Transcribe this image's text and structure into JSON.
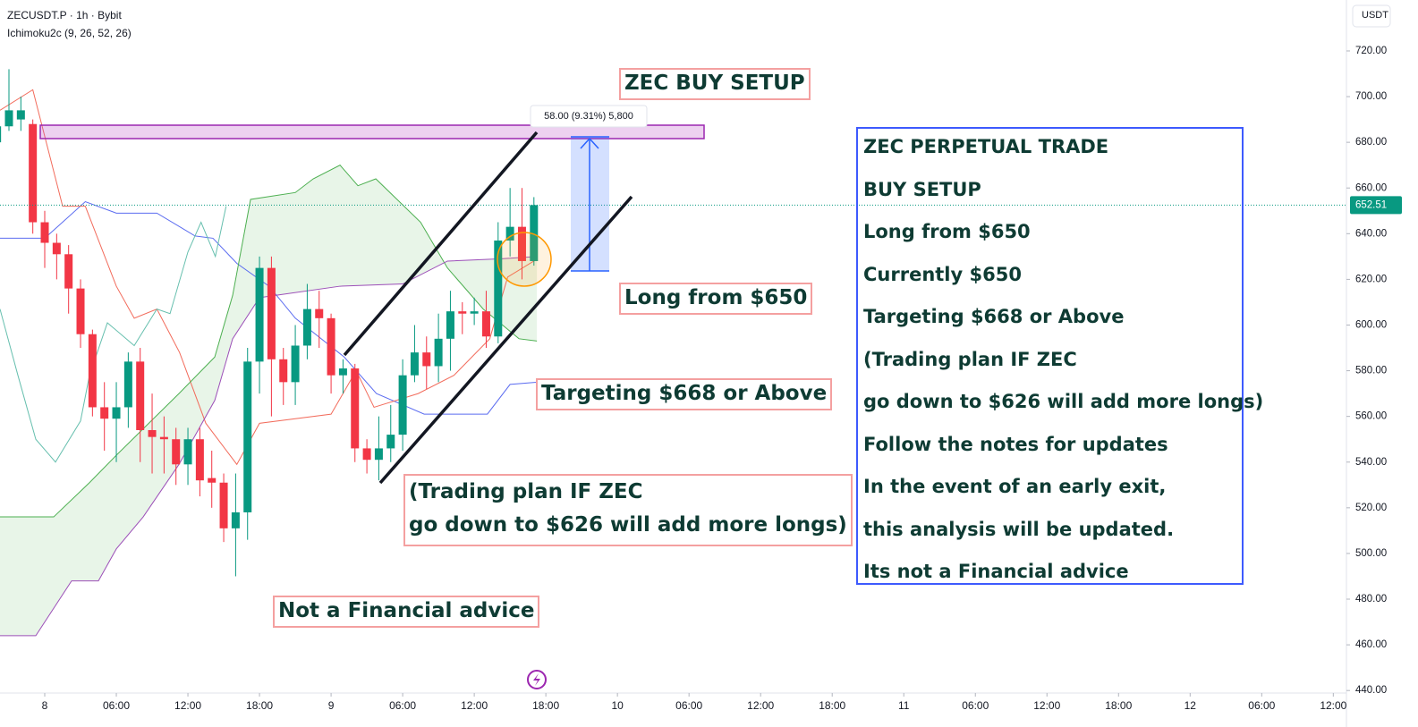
{
  "header": {
    "symbol": "ZECUSDT.P · 1h · Bybit",
    "indicator": "Ichimoku2c (9, 26, 52, 26)",
    "currency": "USDT"
  },
  "chart_data": {
    "type": "candlestick",
    "x": [
      -4,
      -3,
      -2,
      -1,
      0,
      1,
      2,
      3,
      4,
      5,
      6,
      7,
      8,
      9,
      10,
      11,
      12,
      13,
      14,
      15,
      16,
      17,
      18,
      19,
      20,
      21,
      22,
      23,
      24,
      25,
      26,
      27,
      28,
      29,
      30,
      31,
      32,
      33,
      34,
      35,
      36,
      37,
      38,
      39,
      40,
      41
    ],
    "open": [
      680,
      687,
      690,
      688,
      645,
      636,
      631,
      616,
      596,
      564,
      559,
      564,
      584,
      554,
      551,
      550,
      539,
      550,
      533,
      531,
      511,
      518,
      584,
      625,
      585,
      575,
      591,
      607,
      603,
      578,
      581,
      546,
      541,
      546,
      552,
      578,
      588,
      582,
      594,
      606,
      605,
      606,
      595,
      637,
      643,
      628
    ],
    "high": [
      690,
      712,
      700,
      690,
      650,
      640,
      635,
      620,
      598,
      575,
      575,
      588,
      590,
      570,
      560,
      555,
      555,
      555,
      545,
      535,
      535,
      590,
      630,
      630,
      590,
      600,
      618,
      615,
      605,
      585,
      583,
      550,
      560,
      565,
      585,
      600,
      595,
      605,
      615,
      610,
      612,
      615,
      645,
      660,
      660,
      656
    ],
    "low": [
      675,
      685,
      685,
      640,
      625,
      620,
      605,
      590,
      560,
      545,
      540,
      555,
      540,
      535,
      535,
      530,
      530,
      525,
      520,
      505,
      490,
      506,
      570,
      560,
      565,
      565,
      585,
      590,
      570,
      570,
      540,
      535,
      532,
      540,
      545,
      575,
      572,
      575,
      580,
      596,
      600,
      590,
      592,
      630,
      620,
      626
    ],
    "close": [
      687,
      694,
      694,
      645,
      636,
      631,
      616,
      596,
      564,
      559,
      564,
      584,
      554,
      551,
      550,
      539,
      550,
      532,
      531,
      511,
      518,
      584,
      625,
      585,
      575,
      591,
      607,
      603,
      578,
      581,
      546,
      541,
      546,
      552,
      578,
      588,
      582,
      594,
      606,
      605,
      606,
      595,
      637,
      643,
      628,
      652.51
    ],
    "up_color": "#089981",
    "down_color": "#f23645",
    "lines": [
      {
        "color": "#5b6cf0",
        "x": [
          -3.75,
          0,
          3.4,
          6,
          9.4,
          12.6,
          14.1,
          16.1,
          18.8,
          21,
          25.1,
          27.8,
          31.8,
          37.1,
          39,
          41.3
        ],
        "values": [
          638,
          638,
          654,
          649,
          649,
          639,
          638,
          627,
          617,
          603,
          586,
          570,
          561,
          561,
          574,
          575
        ]
      },
      {
        "color": "#f26b5b",
        "x": [
          -3.75,
          -1,
          1.5,
          3.4,
          6,
          7.5,
          9.4,
          11.3,
          13.5,
          16.1,
          18,
          24,
          26.1,
          27.6,
          31.3,
          34.3,
          37.3,
          38.8,
          41.3
        ],
        "values": [
          694,
          703,
          652,
          652,
          617,
          603,
          607,
          588,
          557,
          539,
          557,
          561,
          580,
          564,
          570,
          578,
          594,
          621,
          629
        ]
      },
      {
        "color": "#4caf50",
        "x": [
          -3.75,
          0.75,
          3.75,
          6,
          11.25,
          14.25,
          15.75,
          17.25,
          21,
          22.5,
          24.75,
          26.25,
          27.75,
          31.5,
          33.75,
          36.75,
          39.75,
          41.25
        ],
        "values": [
          516,
          516,
          531,
          543,
          570,
          586,
          613,
          655,
          658,
          664,
          670,
          661,
          664,
          645,
          625,
          607,
          594,
          593
        ]
      },
      {
        "color": "#9c4fb8",
        "x": [
          -3.75,
          -0.75,
          2.25,
          4.5,
          6,
          8.25,
          11.25,
          14.25,
          15.75,
          18,
          24.75,
          30,
          33.75,
          38.25,
          41.25
        ],
        "values": [
          464,
          464,
          488,
          488,
          502,
          516,
          539,
          567,
          594,
          612,
          617,
          618,
          628,
          629,
          630
        ]
      },
      {
        "color": "#66bfae",
        "x": [
          -3.75,
          -2.25,
          -0.75,
          0.9,
          3,
          3.75,
          5.25,
          7.5,
          9.4,
          10.5,
          12,
          13.1,
          14.3,
          15.2
        ],
        "values": [
          607,
          578,
          550,
          540,
          558,
          578,
          601,
          591,
          607,
          605,
          632,
          645,
          630,
          652
        ]
      }
    ],
    "cloud_color": "rgba(76,175,80,0.13)",
    "last_price": 652.51,
    "last_price_color": "#089981",
    "xlim": [
      -3.75,
      109.1
    ],
    "ylim": [
      438.9,
      742.3
    ],
    "xticks": [
      {
        "value": 0,
        "label": "8"
      },
      {
        "value": 6,
        "label": "06:00"
      },
      {
        "value": 12,
        "label": "12:00"
      },
      {
        "value": 18,
        "label": "18:00"
      },
      {
        "value": 24,
        "label": "9"
      },
      {
        "value": 30,
        "label": "06:00"
      },
      {
        "value": 36,
        "label": "12:00"
      },
      {
        "value": 42,
        "label": "18:00"
      },
      {
        "value": 48,
        "label": "10"
      },
      {
        "value": 54,
        "label": "06:00"
      },
      {
        "value": 60,
        "label": "12:00"
      },
      {
        "value": 66,
        "label": "18:00"
      },
      {
        "value": 72,
        "label": "11"
      },
      {
        "value": 78,
        "label": "06:00"
      },
      {
        "value": 84,
        "label": "12:00"
      },
      {
        "value": 90,
        "label": "18:00"
      },
      {
        "value": 96,
        "label": "12"
      },
      {
        "value": 102,
        "label": "06:00"
      },
      {
        "value": 108,
        "label": "12:00"
      }
    ],
    "yticks": [
      {
        "value": 440,
        "label": "440.00"
      },
      {
        "value": 460,
        "label": "460.00"
      },
      {
        "value": 480,
        "label": "480.00"
      },
      {
        "value": 500,
        "label": "500.00"
      },
      {
        "value": 520,
        "label": "520.00"
      },
      {
        "value": 540,
        "label": "540.00"
      },
      {
        "value": 560,
        "label": "560.00"
      },
      {
        "value": 580,
        "label": "580.00"
      },
      {
        "value": 600,
        "label": "600.00"
      },
      {
        "value": 620,
        "label": "620.00"
      },
      {
        "value": 640,
        "label": "640.00"
      },
      {
        "value": 660,
        "label": "660.00"
      },
      {
        "value": 680,
        "label": "680.00"
      },
      {
        "value": 700,
        "label": "700.00"
      },
      {
        "value": 720,
        "label": "720.00"
      }
    ],
    "measure_label": "58.00 (9.31%) 5,800"
  },
  "annotations": {
    "title": "ZEC BUY SETUP",
    "long": "Long from $650",
    "target": "Targeting $668 or Above",
    "plan": [
      "(Trading plan IF ZEC",
      "go down to $626 will add more longs)"
    ],
    "disclaimer": "Not a Financial advice"
  },
  "info_box": [
    "ZEC PERPETUAL TRADE",
    "BUY SETUP",
    "Long from $650",
    "Currently $650",
    "Targeting $668 or Above",
    "(Trading plan IF ZEC",
    "go down to $626 will add more longs)",
    "Follow the notes for updates",
    "In the event of an early exit,",
    "this analysis will be updated.",
    "Its not a Financial advice"
  ]
}
